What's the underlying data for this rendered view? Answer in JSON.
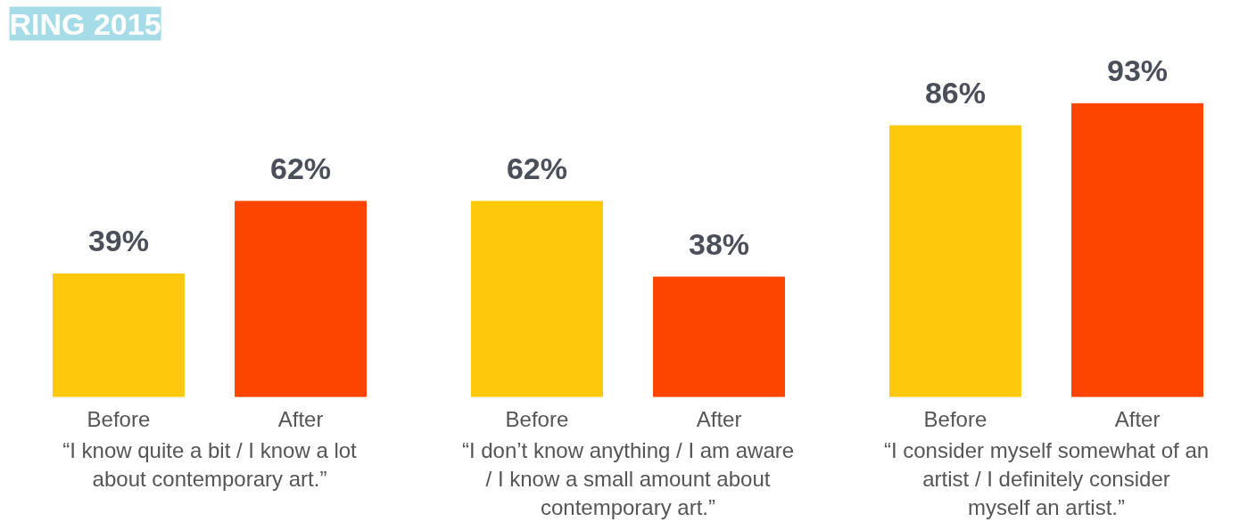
{
  "chart_data": [
    {
      "type": "bar",
      "title": "RING 2015",
      "categories": [
        "Before",
        "After"
      ],
      "values": [
        39,
        62
      ],
      "colors": [
        "#fec90b",
        "#fe4500"
      ],
      "value_labels": [
        "39%",
        "62%"
      ],
      "xlabel": "“I know quite a bit / I know a lot about contemporary art.”",
      "tick_labels": "x"
    },
    {
      "type": "bar",
      "categories": [
        "Before",
        "After"
      ],
      "values": [
        62,
        38
      ],
      "colors": [
        "#fec90b",
        "#fe4500"
      ],
      "value_labels": [
        "62%",
        "38%"
      ],
      "xlabel": "“I don’t know anything / I am aware / I know a small amount about contemporary art.”",
      "tick_labels": "x"
    },
    {
      "type": "bar",
      "categories": [
        "Before",
        "After"
      ],
      "values": [
        86,
        93
      ],
      "colors": [
        "#fec90b",
        "#fe4500"
      ],
      "value_labels": [
        "86%",
        "93%"
      ],
      "xlabel": "“I consider myself somewhat of an artist / I definitely consider myself an artist.”",
      "tick_labels": "x"
    }
  ]
}
